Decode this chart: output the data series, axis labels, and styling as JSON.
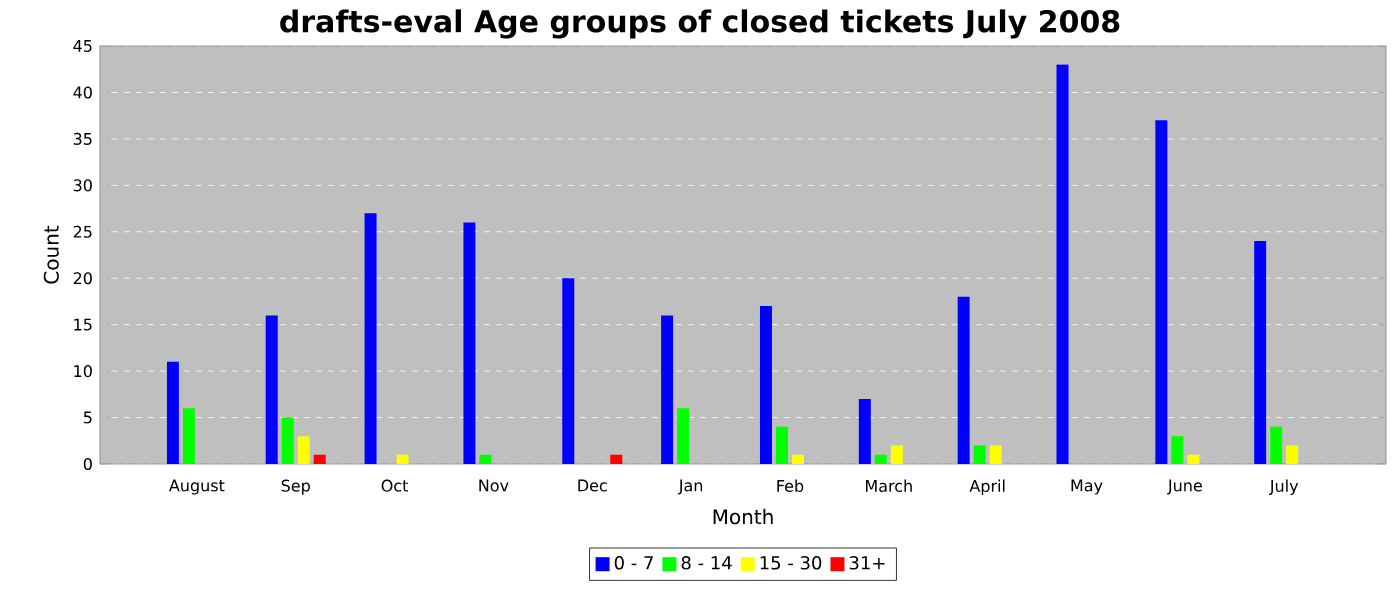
{
  "chart_data": {
    "type": "bar",
    "title": "drafts-eval Age groups of closed tickets July 2008",
    "xlabel": "Month",
    "ylabel": "Count",
    "categories": [
      "August",
      "Sep",
      "Oct",
      "Nov",
      "Dec",
      "Jan",
      "Feb",
      "March",
      "April",
      "May",
      "June",
      "July"
    ],
    "series": [
      {
        "name": "0 - 7",
        "color": "#0000ff",
        "values": [
          11,
          16,
          27,
          26,
          20,
          16,
          17,
          7,
          18,
          43,
          37,
          24
        ]
      },
      {
        "name": "8 - 14",
        "color": "#00ff00",
        "values": [
          6,
          5,
          0,
          1,
          0,
          6,
          4,
          1,
          2,
          0,
          3,
          4
        ]
      },
      {
        "name": "15 - 30",
        "color": "#ffff00",
        "values": [
          0,
          3,
          1,
          0,
          0,
          0,
          1,
          2,
          2,
          0,
          1,
          2
        ]
      },
      {
        "name": "31+",
        "color": "#ff0000",
        "values": [
          0,
          1,
          0,
          0,
          1,
          0,
          0,
          0,
          0,
          0,
          0,
          0
        ]
      }
    ],
    "ylim": [
      0,
      45
    ],
    "yticks": [
      0,
      5,
      10,
      15,
      20,
      25,
      30,
      35,
      40,
      45
    ],
    "grid": "y",
    "legend": "bottom"
  }
}
